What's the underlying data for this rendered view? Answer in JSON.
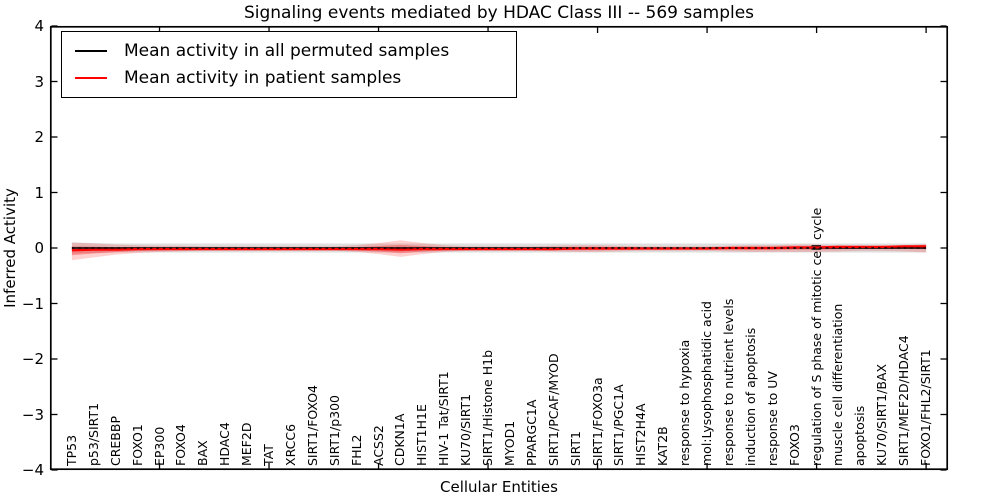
{
  "title": "Signaling events mediated by HDAC Class III -- 569 samples",
  "axes": {
    "ylabel": "Inferred Activity",
    "xlabel": "Cellular Entities",
    "ytick_labels": [
      "4",
      "3",
      "2",
      "1",
      "0",
      "−1",
      "−2",
      "−3",
      "−4"
    ],
    "ytick_values": [
      4,
      3,
      2,
      1,
      0,
      -1,
      -2,
      -3,
      -4
    ]
  },
  "legend": {
    "entries": [
      {
        "label": "Mean activity in all permuted samples",
        "color": "#000000"
      },
      {
        "label": "Mean activity in patient samples",
        "color": "#ff0000"
      }
    ]
  },
  "colors": {
    "patient_line": "#ff0000",
    "permuted_line": "#000000",
    "patient_band": "rgba(255,0,0,0.18)",
    "patient_band_inner": "rgba(255,0,0,0.30)",
    "permuted_band": "rgba(0,0,0,0.13)",
    "spine": "#000000"
  },
  "chart_data": {
    "type": "line",
    "title": "Signaling events mediated by HDAC Class III -- 569 samples",
    "xlabel": "Cellular Entities",
    "ylabel": "Inferred Activity",
    "ylim": [
      -4,
      4
    ],
    "xlim": [
      0,
      41
    ],
    "grid": false,
    "legend_position": "upper left",
    "categories": [
      "TP53",
      "p53/SIRT1",
      "CREBBP",
      "FOXO1",
      "EP300",
      "FOXO4",
      "BAX",
      "HDAC4",
      "MEF2D",
      "TAT",
      "XRCC6",
      "SIRT1/FOXO4",
      "SIRT1/p300",
      "FHL2",
      "ACSS2",
      "CDKN1A",
      "HIST1H1E",
      "HIV-1 Tat/SIRT1",
      "KU70/SIRT1",
      "SIRT1/Histone H1b",
      "MYOD1",
      "PPARGC1A",
      "SIRT1/PCAF/MYOD",
      "SIRT1",
      "SIRT1/FOXO3a",
      "SIRT1/PGC1A",
      "HIST2H4A",
      "KAT2B",
      "response to hypoxia",
      "mol:Lysophosphatidic acid",
      "response to nutrient levels",
      "induction of apoptosis",
      "response to UV",
      "FOXO3",
      "regulation of S phase of mitotic cell cycle",
      "muscle cell differentiation",
      "apoptosis",
      "KU70/SIRT1/BAX",
      "SIRT1/MEF2D/HDAC4",
      "FOXO1/FHL2/SIRT1"
    ],
    "series": [
      {
        "name": "Mean activity in all permuted samples",
        "color": "#000000",
        "values": [
          0,
          0,
          0,
          0,
          0,
          0,
          0,
          0,
          0,
          0,
          0,
          0,
          0,
          0,
          0,
          0,
          0,
          0,
          0,
          0,
          0,
          0,
          0,
          0,
          0,
          0,
          0,
          0,
          0,
          0,
          0,
          0,
          0,
          0,
          0,
          0,
          0,
          0,
          0,
          0
        ],
        "band_halfwidth": [
          0.1,
          0.09,
          0.08,
          0.08,
          0.08,
          0.08,
          0.08,
          0.08,
          0.08,
          0.08,
          0.08,
          0.08,
          0.08,
          0.08,
          0.08,
          0.08,
          0.08,
          0.08,
          0.08,
          0.08,
          0.08,
          0.08,
          0.08,
          0.08,
          0.08,
          0.08,
          0.08,
          0.08,
          0.08,
          0.08,
          0.08,
          0.08,
          0.08,
          0.08,
          0.08,
          0.08,
          0.08,
          0.08,
          0.08,
          0.08
        ]
      },
      {
        "name": "Mean activity in patient samples",
        "color": "#ff0000",
        "values": [
          -0.04,
          -0.03,
          -0.03,
          -0.02,
          -0.02,
          -0.02,
          -0.02,
          -0.02,
          -0.02,
          -0.02,
          -0.02,
          -0.02,
          -0.02,
          -0.02,
          -0.02,
          -0.03,
          -0.02,
          -0.02,
          -0.02,
          -0.02,
          -0.02,
          -0.02,
          -0.02,
          -0.01,
          -0.01,
          -0.01,
          -0.01,
          -0.01,
          -0.01,
          -0.01,
          0.0,
          0.0,
          0.0,
          0.01,
          0.01,
          0.02,
          0.02,
          0.02,
          0.03,
          0.03
        ],
        "band_upper": [
          0.1,
          0.08,
          0.06,
          0.05,
          0.04,
          0.04,
          0.03,
          0.03,
          0.03,
          0.03,
          0.03,
          0.03,
          0.03,
          0.05,
          0.09,
          0.14,
          0.09,
          0.05,
          0.03,
          0.03,
          0.03,
          0.03,
          0.04,
          0.05,
          0.05,
          0.04,
          0.03,
          0.03,
          0.03,
          0.03,
          0.04,
          0.05,
          0.05,
          0.06,
          0.06,
          0.05,
          0.04,
          0.04,
          0.05,
          0.07
        ],
        "band_lower": [
          -0.22,
          -0.17,
          -0.12,
          -0.09,
          -0.07,
          -0.06,
          -0.05,
          -0.05,
          -0.05,
          -0.05,
          -0.05,
          -0.05,
          -0.05,
          -0.07,
          -0.11,
          -0.16,
          -0.11,
          -0.07,
          -0.05,
          -0.05,
          -0.05,
          -0.05,
          -0.06,
          -0.07,
          -0.07,
          -0.06,
          -0.05,
          -0.05,
          -0.05,
          -0.05,
          -0.06,
          -0.07,
          -0.07,
          -0.07,
          -0.07,
          -0.06,
          -0.05,
          -0.05,
          -0.06,
          -0.08
        ]
      }
    ]
  }
}
